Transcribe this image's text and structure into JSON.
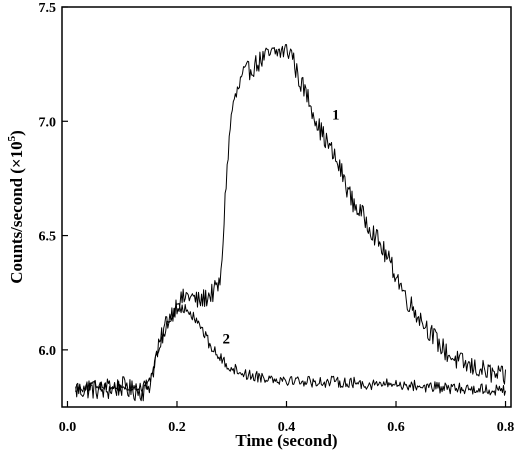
{
  "chart_data": {
    "type": "line",
    "xlabel": "Time (second)",
    "ylabel": "Counts/second (×10",
    "ylabel_superscript": "5",
    "ylabel_suffix": ")",
    "xlim": [
      -0.01,
      0.81
    ],
    "ylim": [
      5.75,
      7.5
    ],
    "x_ticks": [
      0.0,
      0.2,
      0.4,
      0.6,
      0.8
    ],
    "x_tick_labels": [
      "0.0",
      "0.2",
      "0.4",
      "0.6",
      "0.8"
    ],
    "y_ticks": [
      6.0,
      6.5,
      7.0,
      7.5
    ],
    "y_tick_labels": [
      "6.0",
      "6.5",
      "7.0",
      "7.5"
    ],
    "grid": false,
    "colors": {
      "line": "#000000",
      "axis": "#000000",
      "background": "#ffffff"
    },
    "annotations": [
      {
        "text": "1",
        "x": 0.49,
        "y": 7.03
      },
      {
        "text": "2",
        "x": 0.29,
        "y": 6.05
      }
    ],
    "series": [
      {
        "x": [
          0.015,
          0.04,
          0.07,
          0.1,
          0.12,
          0.14,
          0.15,
          0.16,
          0.18,
          0.2,
          0.22,
          0.24,
          0.26,
          0.27,
          0.28,
          0.29,
          0.3,
          0.32,
          0.34,
          0.36,
          0.38,
          0.4,
          0.41,
          0.42,
          0.44,
          0.46,
          0.48,
          0.5,
          0.52,
          0.55,
          0.58,
          0.6,
          0.62,
          0.65,
          0.68,
          0.7,
          0.73,
          0.76,
          0.78,
          0.8
        ],
        "y": [
          5.82,
          5.83,
          5.82,
          5.84,
          5.82,
          5.82,
          5.85,
          5.95,
          6.12,
          6.2,
          6.24,
          6.21,
          6.24,
          6.26,
          6.3,
          6.75,
          7.05,
          7.2,
          7.24,
          7.28,
          7.3,
          7.31,
          7.3,
          7.2,
          7.1,
          6.97,
          6.88,
          6.78,
          6.65,
          6.55,
          6.42,
          6.33,
          6.22,
          6.12,
          6.02,
          5.97,
          5.93,
          5.91,
          5.89,
          5.88
        ]
      },
      {
        "x": [
          0.015,
          0.04,
          0.07,
          0.1,
          0.12,
          0.14,
          0.15,
          0.16,
          0.18,
          0.2,
          0.22,
          0.24,
          0.26,
          0.28,
          0.3,
          0.33,
          0.36,
          0.4,
          0.45,
          0.5,
          0.55,
          0.6,
          0.65,
          0.7,
          0.75,
          0.8
        ],
        "y": [
          5.84,
          5.84,
          5.85,
          5.84,
          5.83,
          5.84,
          5.86,
          5.95,
          6.1,
          6.18,
          6.18,
          6.12,
          6.02,
          5.96,
          5.92,
          5.89,
          5.88,
          5.87,
          5.86,
          5.86,
          5.85,
          5.85,
          5.84,
          5.83,
          5.83,
          5.82
        ]
      }
    ]
  }
}
